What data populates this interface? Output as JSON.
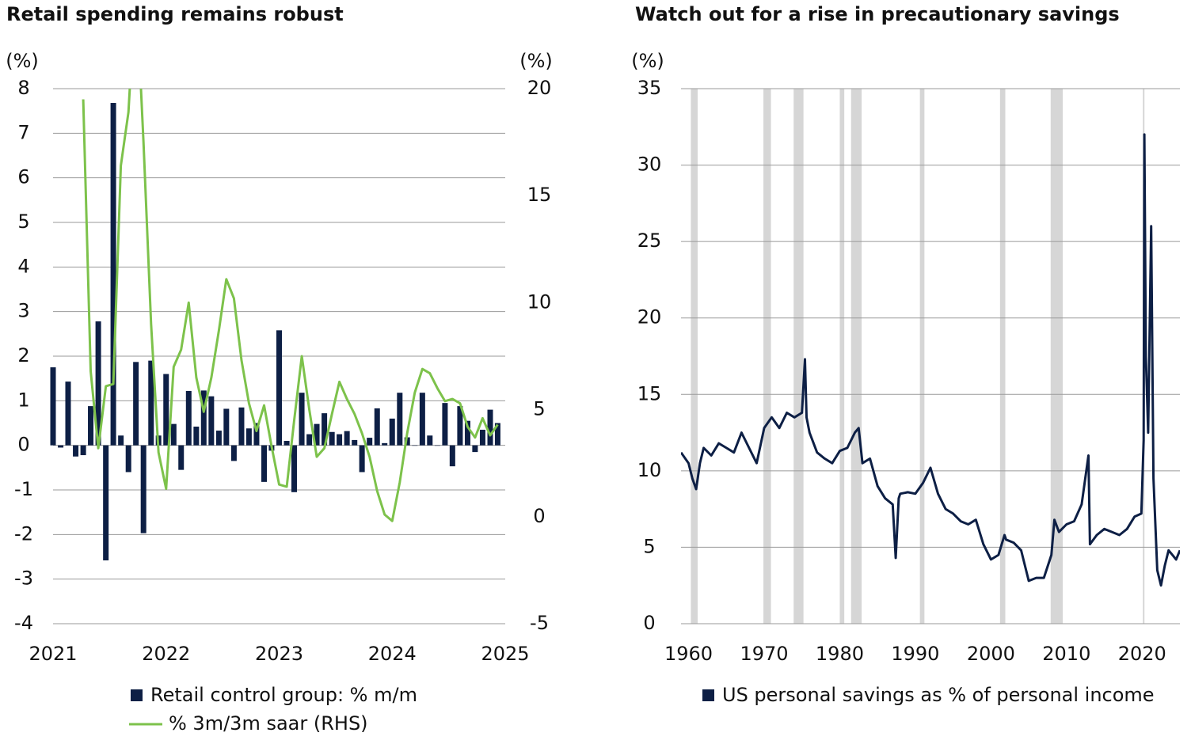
{
  "chart_data": [
    {
      "type": "combo",
      "title": "Retail spending remains robust",
      "ylabel": "(%)",
      "y2label": "(%)",
      "x": [
        2021,
        2021.067,
        2021.133,
        2021.2,
        2021.267,
        2021.333,
        2021.4,
        2021.467,
        2021.533,
        2021.6,
        2021.667,
        2021.733,
        2021.8,
        2021.867,
        2021.933,
        2022,
        2022.067,
        2022.133,
        2022.2,
        2022.267,
        2022.333,
        2022.4,
        2022.467,
        2022.533,
        2022.6,
        2022.667,
        2022.733,
        2022.8,
        2022.867,
        2022.933,
        2023,
        2023.067,
        2023.133,
        2023.2,
        2023.267,
        2023.333,
        2023.4,
        2023.467,
        2023.533,
        2023.6,
        2023.667,
        2023.733,
        2023.8,
        2023.867,
        2023.933,
        2024,
        2024.067,
        2024.133,
        2024.2,
        2024.267,
        2024.333,
        2024.4,
        2024.467,
        2024.533,
        2024.6,
        2024.667,
        2024.733,
        2024.8,
        2024.867,
        2024.933
      ],
      "series": [
        {
          "name": "Retail control group: % m/m",
          "type": "bar",
          "color": "#0d1f45",
          "values": [
            1.75,
            -0.05,
            1.43,
            -0.25,
            -0.22,
            0.88,
            2.78,
            -2.58,
            7.68,
            0.22,
            -0.6,
            1.87,
            -1.97,
            1.9,
            0.22,
            1.6,
            0.48,
            -0.55,
            1.22,
            0.42,
            1.23,
            1.1,
            0.33,
            0.82,
            -0.35,
            0.85,
            0.38,
            0.5,
            -0.82,
            -0.12,
            2.58,
            0.1,
            -1.05,
            1.18,
            0.25,
            0.48,
            0.72,
            0.3,
            0.25,
            0.32,
            0.12,
            -0.6,
            0.17,
            0.83,
            0.05,
            0.6,
            1.18,
            0.18,
            0.0,
            1.18,
            0.22,
            0.0,
            0.95,
            -0.47,
            0.88,
            0.55,
            -0.15,
            0.35,
            0.8,
            0.5
          ]
        },
        {
          "name": "% 3m/3m saar (RHS)",
          "type": "line",
          "axis": "y2",
          "color": "#7dc24b",
          "values": [
            null,
            null,
            null,
            null,
            19.5,
            6.8,
            3.2,
            6.1,
            6.2,
            16.4,
            18.9,
            25,
            17.5,
            9,
            3.0,
            1.3,
            7.0,
            7.8,
            10.0,
            6.5,
            4.9,
            6.5,
            8.7,
            11.1,
            10.2,
            7.3,
            5.3,
            4.0,
            5.2,
            3.3,
            1.5,
            1.4,
            4.5,
            7.5,
            5.0,
            2.8,
            3.2,
            4.8,
            6.3,
            5.5,
            4.8,
            3.9,
            2.8,
            1.2,
            0.1,
            -0.2,
            1.6,
            3.9,
            5.8,
            6.9,
            6.7,
            6.0,
            5.4,
            5.5,
            5.3,
            4.2,
            3.7,
            4.6,
            3.8,
            4.3
          ]
        }
      ],
      "xlim": [
        2021,
        2025
      ],
      "xticks": [
        2021,
        2022,
        2023,
        2024,
        2025
      ],
      "ylim": [
        -4,
        8
      ],
      "yticks": [
        -4,
        -3,
        -2,
        -1,
        0,
        1,
        2,
        3,
        4,
        5,
        6,
        7,
        8
      ],
      "y2lim": [
        -5,
        20
      ],
      "y2ticks": [
        -5,
        0,
        5,
        10,
        15,
        20
      ],
      "grid": true
    },
    {
      "type": "line",
      "title": "Watch out for a rise in precautionary savings",
      "ylabel": "(%)",
      "x": [
        1959,
        1960,
        1960.5,
        1961,
        1961.5,
        1962,
        1963,
        1964,
        1965,
        1966,
        1967,
        1968,
        1969,
        1970,
        1971,
        1972,
        1973,
        1974,
        1975,
        1975.4,
        1975.6,
        1976,
        1977,
        1978,
        1979,
        1980,
        1981,
        1982,
        1982.5,
        1983,
        1984,
        1985,
        1986,
        1987,
        1987.4,
        1987.8,
        1988,
        1989,
        1990,
        1991,
        1992,
        1993,
        1994,
        1995,
        1996,
        1997,
        1998,
        1999,
        2000,
        2001,
        2001.8,
        2002,
        2003,
        2004,
        2005,
        2006,
        2007,
        2008,
        2008.4,
        2009,
        2010,
        2011,
        2012,
        2012.9,
        2013.1,
        2014,
        2015,
        2016,
        2017,
        2018,
        2019,
        2019.9,
        2020.2,
        2020.3,
        2020.5,
        2020.8,
        2021.2,
        2021.5,
        2022,
        2022.5,
        2023,
        2023.5,
        2024,
        2024.5,
        2025
      ],
      "series": [
        {
          "name": "US personal savings as % of personal income",
          "color": "#0d1f45",
          "values": [
            11.2,
            10.5,
            9.5,
            8.8,
            10.5,
            11.5,
            11,
            11.8,
            11.5,
            11.2,
            12.5,
            11.5,
            10.5,
            12.8,
            13.5,
            12.8,
            13.8,
            13.5,
            13.8,
            17.3,
            13.5,
            12.5,
            11.2,
            10.8,
            10.5,
            11.3,
            11.5,
            12.5,
            12.8,
            10.5,
            10.8,
            9,
            8.2,
            7.8,
            4.3,
            8.2,
            8.5,
            8.6,
            8.5,
            9.2,
            10.2,
            8.5,
            7.5,
            7.2,
            6.7,
            6.5,
            6.8,
            5.2,
            4.2,
            4.5,
            5.8,
            5.5,
            5.3,
            4.8,
            2.8,
            3.0,
            3.0,
            4.5,
            6.8,
            6.0,
            6.5,
            6.7,
            7.8,
            11.0,
            5.2,
            5.8,
            6.2,
            6.0,
            5.8,
            6.2,
            7.0,
            7.2,
            12.0,
            32.0,
            17.5,
            12.5,
            26.0,
            9.5,
            3.5,
            2.5,
            3.8,
            4.8,
            4.5,
            4.2,
            4.8
          ]
        }
      ],
      "recessions": [
        [
          1960.3,
          1961.2
        ],
        [
          1969.9,
          1970.9
        ],
        [
          1973.9,
          1975.2
        ],
        [
          1980.0,
          1980.6
        ],
        [
          1981.5,
          1982.9
        ],
        [
          1990.6,
          1991.2
        ],
        [
          2001.2,
          2001.9
        ],
        [
          2007.9,
          2009.5
        ],
        [
          2020.1,
          2020.3
        ]
      ],
      "recession_color": "#d6d6d6",
      "xlim": [
        1959,
        2025
      ],
      "xticks": [
        1960,
        1970,
        1980,
        1990,
        2000,
        2010,
        2020
      ],
      "ylim": [
        0,
        35
      ],
      "yticks": [
        0,
        5,
        10,
        15,
        20,
        25,
        30,
        35
      ],
      "grid": true
    }
  ]
}
